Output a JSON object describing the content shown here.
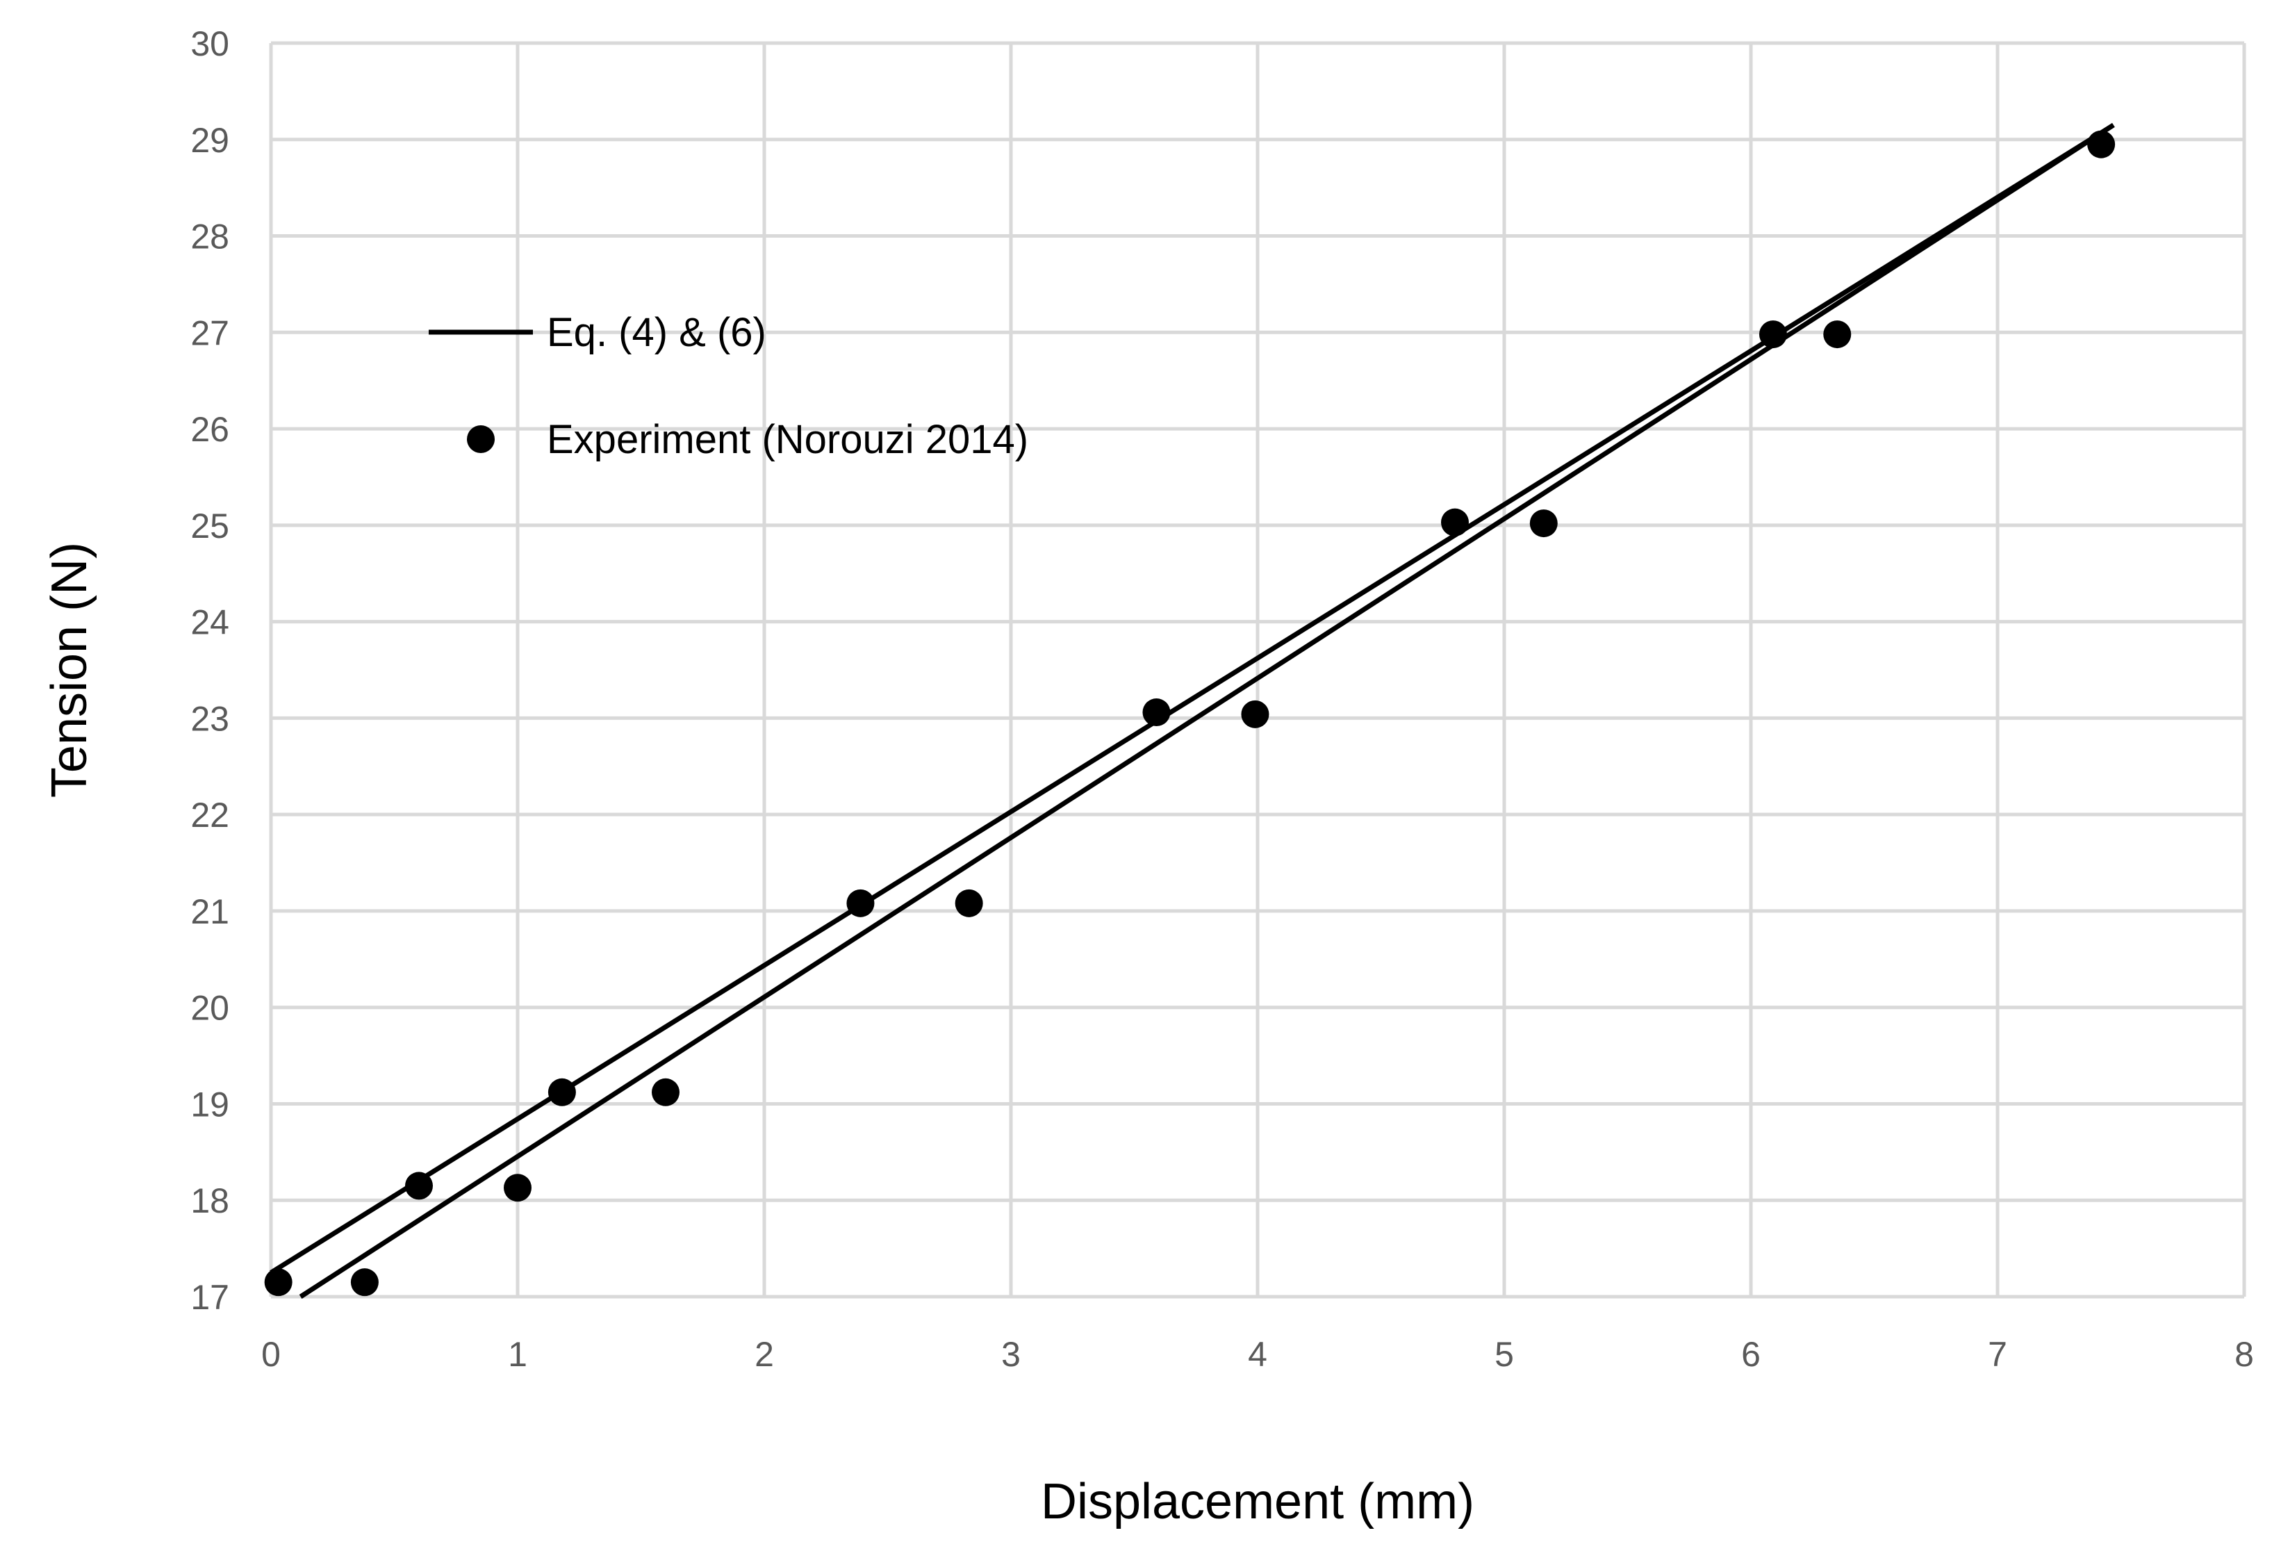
{
  "chart_data": {
    "type": "scatter",
    "xlabel": "Displacement (mm)",
    "ylabel": "Tension (N)",
    "xlim": [
      0,
      8
    ],
    "ylim": [
      17,
      30
    ],
    "xticks": [
      "0",
      "1",
      "2",
      "3",
      "4",
      "5",
      "6",
      "7",
      "8"
    ],
    "yticks": [
      "17",
      "18",
      "19",
      "20",
      "21",
      "22",
      "23",
      "24",
      "25",
      "26",
      "27",
      "28",
      "29",
      "30"
    ],
    "grid": true,
    "legend_position": "top-left",
    "series": [
      {
        "name": "Eq. (4) & (6)",
        "kind": "line",
        "color": "#000000",
        "segments": [
          {
            "x": [
              0.0,
              7.47
            ],
            "y": [
              17.25,
              29.15
            ]
          },
          {
            "x": [
              0.12,
              7.47
            ],
            "y": [
              17.0,
              29.15
            ]
          }
        ]
      },
      {
        "name": "Experiment (Norouzi 2014)",
        "kind": "scatter",
        "color": "#000000",
        "x": [
          0.03,
          0.38,
          0.6,
          1.0,
          1.18,
          1.6,
          2.39,
          2.83,
          3.59,
          3.99,
          4.8,
          5.16,
          6.09,
          6.35,
          7.42
        ],
        "y": [
          17.15,
          17.15,
          18.15,
          18.13,
          19.12,
          19.12,
          21.08,
          21.08,
          23.06,
          23.04,
          25.03,
          25.02,
          26.98,
          26.98,
          28.95
        ]
      }
    ]
  }
}
